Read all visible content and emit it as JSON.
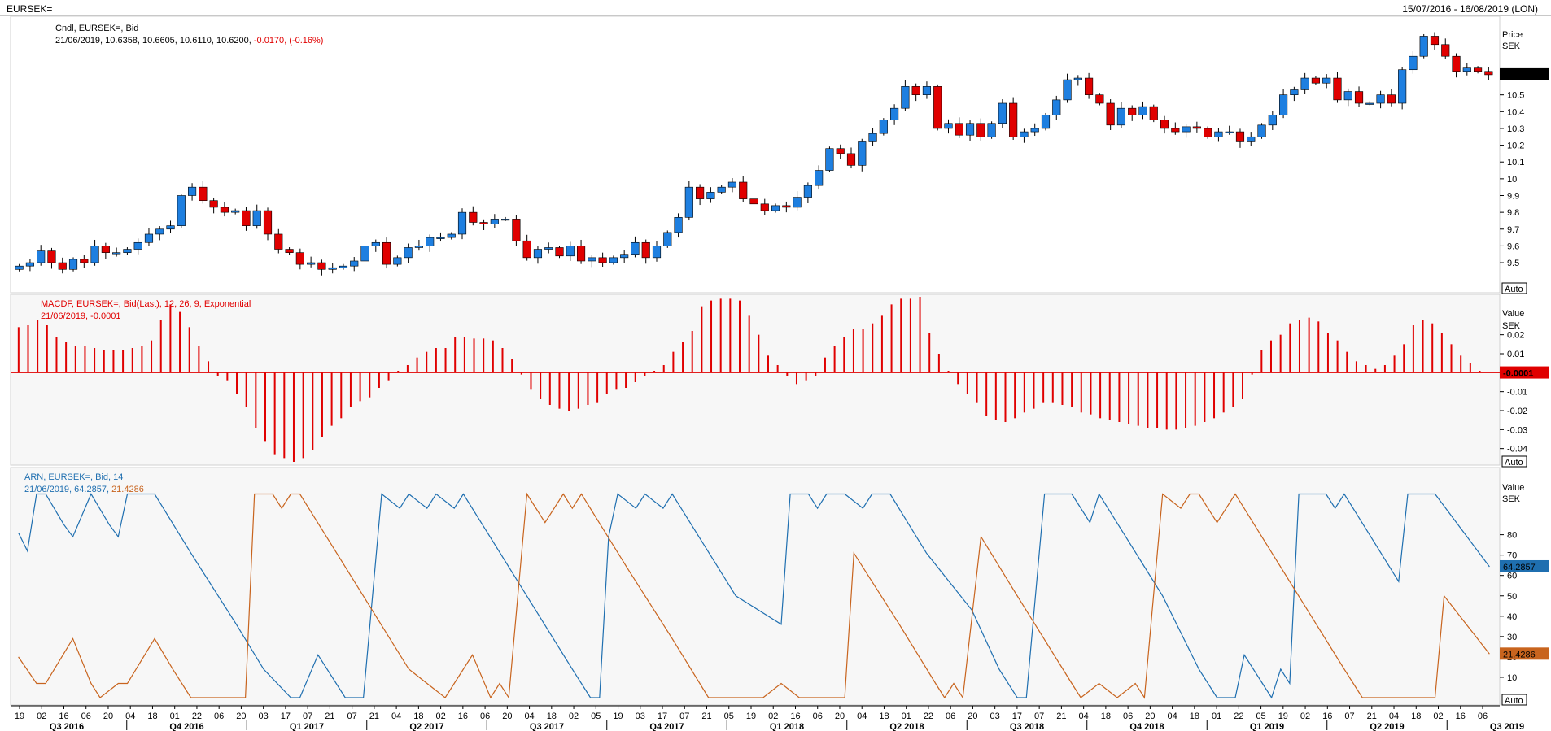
{
  "header": {
    "symbol": "EURSEK=",
    "date_range": "15/07/2016 - 16/08/2019 (LON)"
  },
  "colors": {
    "up": "#1e7fe0",
    "down": "#e00000",
    "macd": "#e00000",
    "aroon_up": "#1f6fb0",
    "aroon_down": "#c8641e"
  },
  "chart_data": [
    {
      "type": "candlestick",
      "legend_line1": "Cndl, EURSEK=, Bid",
      "legend_values": "21/06/2019, 10.6358, 10.6605, 10.6110, 10.6200, ",
      "legend_change": "-0.0170, (-0.16%)",
      "unit_label": "Price",
      "unit": "SEK",
      "last_value_label": "10.6200",
      "last_value": 10.62,
      "ylim": [
        9.35,
        10.92
      ],
      "yticks": [
        9.5,
        9.6,
        9.7,
        9.8,
        9.9,
        10,
        10.1,
        10.2,
        10.3,
        10.4,
        10.5
      ],
      "ytick_labels": [
        "9.5",
        "9.6",
        "9.7",
        "9.8",
        "9.9",
        "10",
        "10.1",
        "10.2",
        "10.3",
        "10.4",
        "10.5"
      ],
      "scale_button": "Auto",
      "close": [
        9.48,
        9.5,
        9.57,
        9.5,
        9.46,
        9.52,
        9.5,
        9.6,
        9.56,
        9.56,
        9.58,
        9.62,
        9.67,
        9.7,
        9.72,
        9.9,
        9.95,
        9.87,
        9.83,
        9.8,
        9.81,
        9.72,
        9.81,
        9.67,
        9.58,
        9.56,
        9.49,
        9.5,
        9.46,
        9.47,
        9.48,
        9.51,
        9.6,
        9.62,
        9.49,
        9.53,
        9.59,
        9.6,
        9.65,
        9.65,
        9.67,
        9.8,
        9.74,
        9.73,
        9.76,
        9.76,
        9.63,
        9.53,
        9.58,
        9.59,
        9.54,
        9.6,
        9.51,
        9.53,
        9.5,
        9.53,
        9.55,
        9.62,
        9.53,
        9.6,
        9.68,
        9.77,
        9.95,
        9.88,
        9.92,
        9.95,
        9.98,
        9.88,
        9.85,
        9.81,
        9.84,
        9.83,
        9.89,
        9.96,
        10.05,
        10.18,
        10.15,
        10.08,
        10.22,
        10.27,
        10.35,
        10.42,
        10.55,
        10.5,
        10.55,
        10.3,
        10.33,
        10.26,
        10.33,
        10.25,
        10.33,
        10.45,
        10.25,
        10.28,
        10.3,
        10.38,
        10.47,
        10.59,
        10.6,
        10.5,
        10.45,
        10.32,
        10.42,
        10.38,
        10.43,
        10.35,
        10.3,
        10.28,
        10.31,
        10.3,
        10.25,
        10.28,
        10.28,
        10.22,
        10.25,
        10.32,
        10.38,
        10.5,
        10.53,
        10.6,
        10.57,
        10.6,
        10.47,
        10.52,
        10.45,
        10.45,
        10.5,
        10.45,
        10.65,
        10.73,
        10.85,
        10.8,
        10.73,
        10.64,
        10.66,
        10.64,
        10.62
      ]
    },
    {
      "type": "bar",
      "legend_line1": "MACDF, EURSEK=, Bid(Last),  12, 26, 9, Exponential",
      "legend_line2": "21/06/2019, -0.0001",
      "unit_label": "Value",
      "unit": "SEK",
      "last_value_label": "-0.0001",
      "last_value": -0.0001,
      "ylim": [
        -0.047,
        0.04
      ],
      "yticks": [
        0.02,
        0.01,
        -0.01,
        -0.02,
        -0.03,
        -0.04
      ],
      "ytick_labels": [
        "0.02",
        "0.01",
        "-0.01",
        "-0.02",
        "-0.03",
        "-0.04"
      ],
      "scale_button": "Auto",
      "values": [
        0.024,
        0.025,
        0.028,
        0.025,
        0.019,
        0.016,
        0.014,
        0.014,
        0.013,
        0.012,
        0.012,
        0.012,
        0.013,
        0.014,
        0.017,
        0.028,
        0.036,
        0.032,
        0.024,
        0.014,
        0.006,
        -0.002,
        -0.004,
        -0.011,
        -0.018,
        -0.029,
        -0.036,
        -0.043,
        -0.045,
        -0.047,
        -0.045,
        -0.041,
        -0.034,
        -0.028,
        -0.024,
        -0.018,
        -0.015,
        -0.013,
        -0.008,
        -0.004,
        0.001,
        0.004,
        0.008,
        0.011,
        0.013,
        0.013,
        0.019,
        0.019,
        0.018,
        0.018,
        0.017,
        0.013,
        0.007,
        -0.001,
        -0.009,
        -0.014,
        -0.017,
        -0.019,
        -0.02,
        -0.019,
        -0.017,
        -0.016,
        -0.011,
        -0.009,
        -0.008,
        -0.005,
        -0.002,
        0.001,
        0.004,
        0.011,
        0.016,
        0.022,
        0.035,
        0.038,
        0.039,
        0.039,
        0.038,
        0.03,
        0.02,
        0.009,
        0.004,
        -0.002,
        -0.006,
        -0.004,
        -0.002,
        0.008,
        0.014,
        0.019,
        0.023,
        0.023,
        0.026,
        0.03,
        0.036,
        0.039,
        0.039,
        0.04,
        0.021,
        0.01,
        0.001,
        -0.006,
        -0.011,
        -0.016,
        -0.023,
        -0.025,
        -0.026,
        -0.024,
        -0.021,
        -0.019,
        -0.016,
        -0.016,
        -0.017,
        -0.018,
        -0.021,
        -0.022,
        -0.024,
        -0.025,
        -0.026,
        -0.027,
        -0.028,
        -0.029,
        -0.029,
        -0.03,
        -0.03,
        -0.029,
        -0.028,
        -0.026,
        -0.024,
        -0.021,
        -0.018,
        -0.014,
        -0.001,
        0.012,
        0.017,
        0.02,
        0.026,
        0.028,
        0.029,
        0.027,
        0.021,
        0.017,
        0.011,
        0.006,
        0.004,
        0.002,
        0.004,
        0.009,
        0.015,
        0.025,
        0.028,
        0.026,
        0.021,
        0.015,
        0.009,
        0.005,
        0.001,
        0.0
      ]
    },
    {
      "type": "line",
      "legend_line1": "ARN, EURSEK=, Bid,  14",
      "legend_date": "21/06/2019, ",
      "legend_up_value": "64.2857",
      "legend_down_value": "21.4286",
      "unit_label": "Value",
      "unit": "SEK",
      "ylim": [
        0,
        105
      ],
      "yticks": [
        10,
        20,
        30,
        40,
        50,
        60,
        70,
        80
      ],
      "ytick_labels": [
        "10",
        "20",
        "30",
        "40",
        "50",
        "60",
        "70",
        "80"
      ],
      "scale_button": "Auto",
      "series": [
        {
          "last_value_label": "64.2857",
          "last_value": 64.2857,
          "points": [
            [
              0,
              81
            ],
            [
              1,
              72
            ],
            [
              2,
              100
            ],
            [
              3,
              100
            ],
            [
              5,
              85
            ],
            [
              6,
              79
            ],
            [
              8,
              100
            ],
            [
              10,
              85
            ],
            [
              11,
              79
            ],
            [
              12,
              100
            ],
            [
              15,
              100
            ],
            [
              19,
              71
            ],
            [
              24,
              36
            ],
            [
              27,
              14
            ],
            [
              30,
              0
            ],
            [
              31,
              0
            ],
            [
              33,
              21
            ],
            [
              36,
              0
            ],
            [
              38,
              0
            ],
            [
              40,
              100
            ],
            [
              42,
              93
            ],
            [
              43,
              100
            ],
            [
              45,
              93
            ],
            [
              46,
              100
            ],
            [
              48,
              93
            ],
            [
              49,
              100
            ],
            [
              55,
              57
            ],
            [
              61,
              14
            ],
            [
              63,
              0
            ],
            [
              64,
              0
            ],
            [
              65,
              79
            ],
            [
              66,
              100
            ],
            [
              68,
              93
            ],
            [
              69,
              100
            ],
            [
              71,
              93
            ],
            [
              72,
              100
            ],
            [
              79,
              50
            ],
            [
              84,
              36
            ],
            [
              85,
              100
            ],
            [
              87,
              100
            ],
            [
              88,
              93
            ],
            [
              89,
              100
            ],
            [
              91,
              100
            ],
            [
              93,
              93
            ],
            [
              94,
              100
            ],
            [
              96,
              100
            ],
            [
              100,
              71
            ],
            [
              105,
              43
            ],
            [
              108,
              14
            ],
            [
              110,
              0
            ],
            [
              111,
              0
            ],
            [
              113,
              100
            ],
            [
              116,
              100
            ],
            [
              118,
              86
            ],
            [
              119,
              100
            ],
            [
              126,
              50
            ],
            [
              130,
              14
            ],
            [
              132,
              0
            ],
            [
              134,
              0
            ],
            [
              135,
              21
            ],
            [
              137,
              7
            ],
            [
              138,
              0
            ],
            [
              139,
              14
            ],
            [
              140,
              7
            ],
            [
              141,
              100
            ],
            [
              144,
              100
            ],
            [
              145,
              93
            ],
            [
              146,
              100
            ],
            [
              152,
              57
            ],
            [
              153,
              100
            ],
            [
              156,
              100
            ],
            [
              162,
              64.2857
            ]
          ]
        },
        {
          "last_value_label": "21.4286",
          "last_value": 21.4286,
          "points": [
            [
              0,
              20
            ],
            [
              2,
              7
            ],
            [
              3,
              7
            ],
            [
              6,
              29
            ],
            [
              8,
              7
            ],
            [
              9,
              0
            ],
            [
              11,
              7
            ],
            [
              12,
              7
            ],
            [
              15,
              29
            ],
            [
              17,
              14
            ],
            [
              19,
              0
            ],
            [
              25,
              0
            ],
            [
              26,
              100
            ],
            [
              28,
              100
            ],
            [
              29,
              93
            ],
            [
              30,
              100
            ],
            [
              31,
              100
            ],
            [
              37,
              57
            ],
            [
              43,
              14
            ],
            [
              45,
              7
            ],
            [
              47,
              0
            ],
            [
              48,
              7
            ],
            [
              50,
              21
            ],
            [
              52,
              0
            ],
            [
              53,
              7
            ],
            [
              54,
              0
            ],
            [
              56,
              100
            ],
            [
              58,
              86
            ],
            [
              60,
              100
            ],
            [
              61,
              93
            ],
            [
              62,
              100
            ],
            [
              67,
              64
            ],
            [
              72,
              29
            ],
            [
              76,
              0
            ],
            [
              82,
              0
            ],
            [
              84,
              7
            ],
            [
              86,
              0
            ],
            [
              91,
              0
            ],
            [
              92,
              71
            ],
            [
              97,
              36
            ],
            [
              101,
              7
            ],
            [
              102,
              0
            ],
            [
              103,
              7
            ],
            [
              104,
              0
            ],
            [
              106,
              79
            ],
            [
              110,
              50
            ],
            [
              116,
              7
            ],
            [
              117,
              0
            ],
            [
              119,
              7
            ],
            [
              121,
              0
            ],
            [
              123,
              7
            ],
            [
              124,
              0
            ],
            [
              126,
              100
            ],
            [
              128,
              93
            ],
            [
              129,
              100
            ],
            [
              130,
              100
            ],
            [
              132,
              86
            ],
            [
              134,
              100
            ],
            [
              140,
              57
            ],
            [
              146,
              14
            ],
            [
              148,
              0
            ],
            [
              156,
              0
            ],
            [
              157,
              50
            ],
            [
              162,
              21.4286
            ]
          ]
        }
      ]
    }
  ],
  "time_axis": {
    "day_labels": [
      "19",
      "02",
      "16",
      "06",
      "20",
      "04",
      "18",
      "01",
      "22",
      "06",
      "20",
      "03",
      "17",
      "07",
      "21",
      "07",
      "21",
      "04",
      "18",
      "02",
      "16",
      "06",
      "20",
      "04",
      "18",
      "02",
      "05",
      "19",
      "03",
      "17",
      "07",
      "21",
      "05",
      "19",
      "02",
      "16",
      "06",
      "20",
      "04",
      "18",
      "01",
      "22",
      "06",
      "20",
      "03",
      "17",
      "07",
      "21",
      "04",
      "18",
      "06",
      "20",
      "04",
      "18",
      "01",
      "22",
      "05",
      "19",
      "02",
      "16",
      "07",
      "21",
      "04",
      "18",
      "02",
      "16",
      "06"
    ],
    "quarter_labels": [
      "Q3 2016",
      "Q4 2016",
      "Q1 2017",
      "Q2 2017",
      "Q3 2017",
      "Q4 2017",
      "Q1 2018",
      "Q2 2018",
      "Q3 2018",
      "Q4 2018",
      "Q1 2019",
      "Q2 2019",
      "Q3 2019"
    ],
    "scale_button": "Auto"
  }
}
